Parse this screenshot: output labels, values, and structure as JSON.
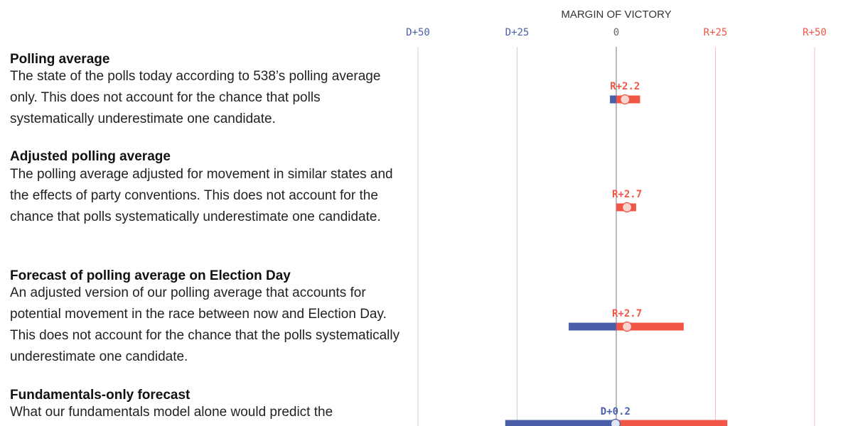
{
  "rows": [
    {
      "title": "Polling average",
      "body": "The state of the polls today according to 538’s polling average only. This does not account for the chance that polls systematically underestimate one candidate."
    },
    {
      "title": "Adjusted polling average",
      "body": "The polling average adjusted for movement in similar states and the effects of party conventions. This does not account for the chance that polls systematically underestimate one candidate."
    },
    {
      "title": "Forecast of polling average on Election Day",
      "body": "An adjusted version of our polling average that accounts for potential movement in the race between now and Election Day. This does not account for the chance that the polls systematically underestimate one candidate."
    },
    {
      "title": "Fundamentals-only forecast",
      "body": "What our fundamentals model alone would predict the"
    }
  ],
  "chart_data": {
    "type": "range-dot",
    "title": "MARGIN OF VICTORY",
    "x_axis": {
      "range": [
        -50,
        50
      ],
      "ticks": [
        {
          "value": -50,
          "label": "D+50"
        },
        {
          "value": -25,
          "label": "D+25"
        },
        {
          "value": 0,
          "label": "0"
        },
        {
          "value": 25,
          "label": "R+25"
        },
        {
          "value": 50,
          "label": "R+50"
        }
      ]
    },
    "series": [
      {
        "name": "Polling average",
        "low": -1.6,
        "high": 6.0,
        "point": 2.2,
        "label": "R+2.2"
      },
      {
        "name": "Adjusted polling average",
        "low": 0.0,
        "high": 5.0,
        "point": 2.7,
        "label": "R+2.7"
      },
      {
        "name": "Forecast of polling average on Election Day",
        "low": -12.0,
        "high": 17.0,
        "point": 2.7,
        "label": "R+2.7"
      },
      {
        "name": "Fundamentals-only forecast",
        "low": -28.0,
        "high": 28.0,
        "point": -0.2,
        "label": "D+0.2"
      }
    ],
    "colors": {
      "dem": "#4a5fa8",
      "rep": "#f05545",
      "dem_light": "#c9cde2",
      "rep_light": "#f7c2bc",
      "zero": "#777777",
      "dot_fill": "#f8d4cf"
    }
  }
}
